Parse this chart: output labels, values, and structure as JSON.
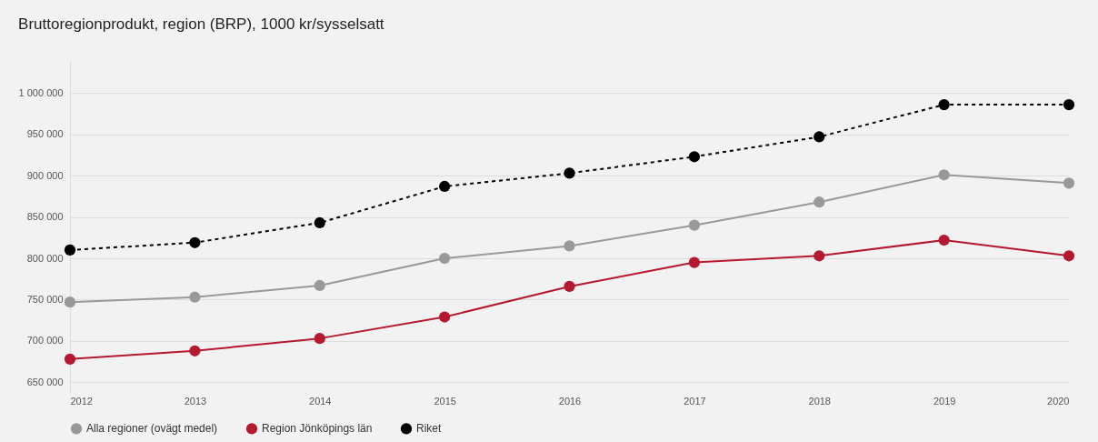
{
  "chart_data": {
    "type": "line",
    "title": "Bruttoregionprodukt, region (BRP), 1000 kr/sysselsatt",
    "x": [
      2012,
      2013,
      2014,
      2015,
      2016,
      2017,
      2018,
      2019,
      2020
    ],
    "series": [
      {
        "name": "Alla regioner (ovägt medel)",
        "color": "#999999",
        "line_style": "solid",
        "values": [
          747000,
          753000,
          767000,
          800000,
          815000,
          840000,
          868000,
          901000,
          891000
        ]
      },
      {
        "name": "Region Jönköpings län",
        "color": "#b5192f",
        "line_style": "solid",
        "values": [
          678000,
          688000,
          703000,
          729000,
          766000,
          795000,
          803000,
          822000,
          803000
        ]
      },
      {
        "name": "Riket",
        "color": "#000000",
        "line_style": "dashed",
        "values": [
          810000,
          819000,
          843000,
          887000,
          903000,
          923000,
          947000,
          986000,
          986000
        ]
      }
    ],
    "xlim": [
      2012,
      2020
    ],
    "xticks": [
      2012,
      2013,
      2014,
      2015,
      2016,
      2017,
      2018,
      2019,
      2020
    ],
    "ylim": [
      636000,
      1040000
    ],
    "yticks": [
      {
        "value": 650000,
        "label": "650 000"
      },
      {
        "value": 700000,
        "label": "700 000"
      },
      {
        "value": 750000,
        "label": "750 000"
      },
      {
        "value": 800000,
        "label": "800 000"
      },
      {
        "value": 850000,
        "label": "850 000"
      },
      {
        "value": 900000,
        "label": "900 000"
      },
      {
        "value": 950000,
        "label": "950 000"
      },
      {
        "value": 1000000,
        "label": "1 000 000"
      }
    ],
    "grid": "y",
    "legend": "bottom",
    "marker": "circle"
  }
}
